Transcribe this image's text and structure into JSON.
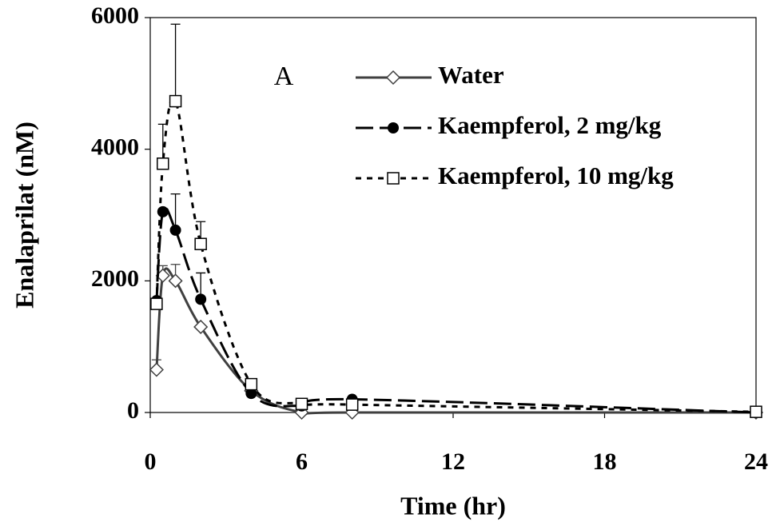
{
  "chart_data": {
    "type": "line",
    "x_label": "Time (hr)",
    "y_label": "Enalaprilat (nM)",
    "annotation": "A",
    "x": [
      0.25,
      0.5,
      1,
      2,
      4,
      6,
      8,
      24
    ],
    "series": [
      {
        "name": "Water",
        "color": "#404040",
        "marker": "diamond",
        "dash": "solid",
        "values": [
          650,
          2080,
          2000,
          1300,
          330,
          0,
          0,
          0
        ],
        "errors": [
          150,
          150,
          250,
          null,
          null,
          null,
          null,
          null
        ]
      },
      {
        "name": "Kaempferol, 2 mg/kg",
        "color": "#000000",
        "marker": "circle",
        "dash": "long",
        "values": [
          1700,
          3050,
          2770,
          1720,
          290,
          100,
          200,
          0
        ],
        "errors": [
          null,
          null,
          550,
          400,
          null,
          null,
          null,
          null
        ]
      },
      {
        "name": "Kaempferol, 10 mg/kg",
        "color": "#000000",
        "marker": "square",
        "dash": "short",
        "values": [
          1650,
          3780,
          4730,
          2560,
          430,
          130,
          120,
          10
        ],
        "errors": [
          null,
          600,
          1170,
          340,
          null,
          null,
          null,
          null
        ]
      }
    ],
    "xlim": [
      0,
      24
    ],
    "xticks": [
      0,
      6,
      12,
      18,
      24
    ],
    "ylim": [
      0,
      6000
    ],
    "yticks": [
      0,
      2000,
      4000,
      6000
    ],
    "grid": false
  }
}
